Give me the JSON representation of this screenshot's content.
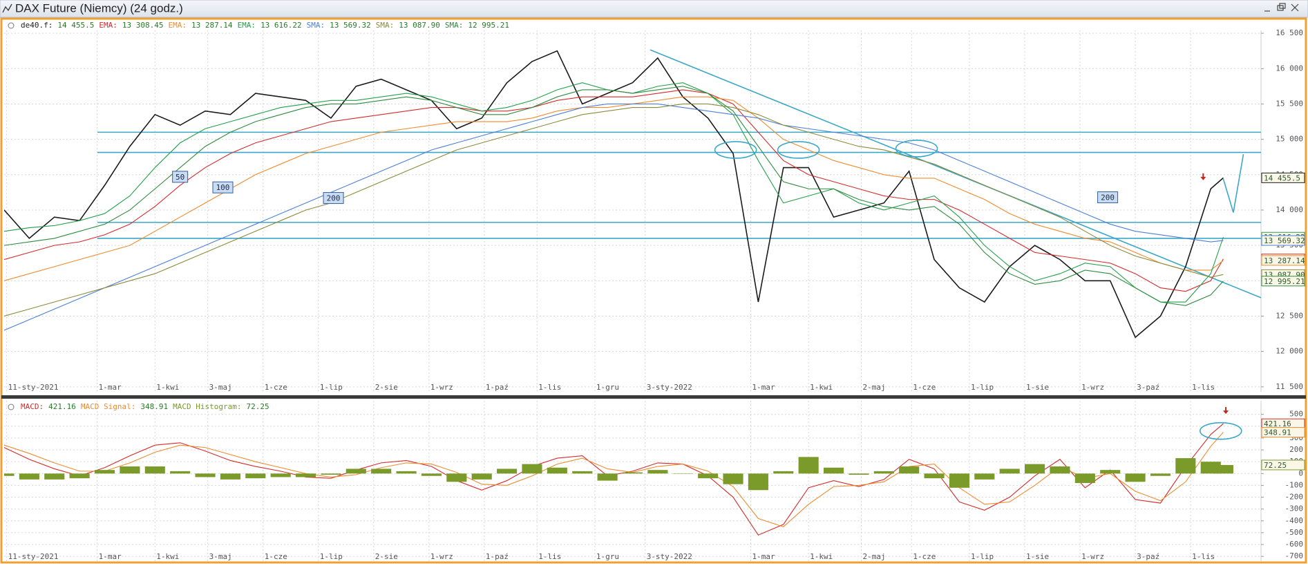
{
  "window_title": "DAX Future (Niemcy) (24 godz.)",
  "chart_data": [
    {
      "type": "line",
      "xlim": [
        0,
        500
      ],
      "ylim": [
        11430,
        16540
      ],
      "xticks": [
        {
          "value": 1,
          "label": "11-sty-2021"
        },
        {
          "value": 37,
          "label": "1-mar"
        },
        {
          "value": 60,
          "label": "1-kwi"
        },
        {
          "value": 81,
          "label": "3-maj"
        },
        {
          "value": 103,
          "label": "1-cze"
        },
        {
          "value": 125,
          "label": "1-lip"
        },
        {
          "value": 147,
          "label": "2-sie"
        },
        {
          "value": 169,
          "label": "1-wrz"
        },
        {
          "value": 191,
          "label": "1-paź"
        },
        {
          "value": 212,
          "label": "1-lis"
        },
        {
          "value": 235,
          "label": "1-gru"
        },
        {
          "value": 255,
          "label": "3-sty-2022"
        },
        {
          "value": 297,
          "label": "1-mar"
        },
        {
          "value": 320,
          "label": "1-kwi"
        },
        {
          "value": 341,
          "label": "2-maj"
        },
        {
          "value": 361,
          "label": "1-cze"
        },
        {
          "value": 384,
          "label": "1-lip"
        },
        {
          "value": 406,
          "label": "1-sie"
        },
        {
          "value": 428,
          "label": "1-wrz"
        },
        {
          "value": 450,
          "label": "3-paź"
        },
        {
          "value": 472,
          "label": "1-lis"
        }
      ],
      "yticks": [
        {
          "value": 11500,
          "label": "11 500"
        },
        {
          "value": 12000,
          "label": "12 000"
        },
        {
          "value": 12500,
          "label": "12 500"
        },
        {
          "value": 13000,
          "label": "13 000"
        },
        {
          "value": 13500,
          "label": "13 500"
        },
        {
          "value": 14000,
          "label": "14 000"
        },
        {
          "value": 14500,
          "label": "14 500"
        },
        {
          "value": 15000,
          "label": "15 000"
        },
        {
          "value": 15500,
          "label": "15 500"
        },
        {
          "value": 16000,
          "label": "16 000"
        },
        {
          "value": 16500,
          "label": "16 500"
        }
      ],
      "grid": true,
      "x": [
        0,
        10,
        20,
        30,
        40,
        50,
        60,
        70,
        80,
        90,
        100,
        110,
        120,
        130,
        140,
        150,
        160,
        170,
        180,
        190,
        200,
        210,
        220,
        230,
        240,
        250,
        260,
        270,
        280,
        290,
        300,
        310,
        320,
        330,
        340,
        350,
        360,
        370,
        380,
        390,
        400,
        410,
        420,
        430,
        440,
        450,
        460,
        470,
        480,
        485
      ],
      "legend": [
        {
          "name": "de40.f:",
          "value": "14 455.5"
        },
        {
          "name": "EMA:",
          "value": "13 308.45"
        },
        {
          "name": "EMA:",
          "value": "13 287.14"
        },
        {
          "name": "EMA:",
          "value": "13 616.22"
        },
        {
          "name": "SMA:",
          "value": "13 569.32"
        },
        {
          "name": "SMA:",
          "value": "13 087.90"
        },
        {
          "name": "SMA:",
          "value": "12 995.21"
        }
      ],
      "series": [
        {
          "type": "line",
          "color": "#1a1a1a",
          "values": [
            14000,
            13600,
            13900,
            13850,
            14350,
            14900,
            15350,
            15200,
            15400,
            15350,
            15650,
            15600,
            15550,
            15300,
            15750,
            15850,
            15700,
            15550,
            15150,
            15300,
            15800,
            16100,
            16250,
            15500,
            15650,
            15800,
            16150,
            15600,
            15300,
            14800,
            12700,
            14600,
            14600,
            13900,
            14000,
            14100,
            14550,
            13300,
            12900,
            12700,
            13200,
            13500,
            13300,
            13000,
            13000,
            12200,
            12500,
            13200,
            14300,
            14455.5
          ]
        },
        {
          "type": "line",
          "color": "#d42a2a",
          "values": [
            13300,
            13400,
            13500,
            13550,
            13650,
            13800,
            14050,
            14350,
            14600,
            14800,
            14950,
            15050,
            15150,
            15250,
            15300,
            15350,
            15400,
            15450,
            15450,
            15400,
            15400,
            15450,
            15550,
            15600,
            15600,
            15600,
            15650,
            15700,
            15650,
            15500,
            15100,
            14700,
            14500,
            14400,
            14300,
            14200,
            14150,
            14150,
            14000,
            13800,
            13600,
            13400,
            13350,
            13300,
            13250,
            13100,
            12900,
            12850,
            13000,
            13308.45
          ]
        },
        {
          "type": "line",
          "color": "#f08a2c",
          "values": [
            13000,
            13100,
            13200,
            13300,
            13400,
            13500,
            13700,
            13900,
            14100,
            14300,
            14500,
            14650,
            14800,
            14900,
            15000,
            15100,
            15150,
            15200,
            15250,
            15250,
            15250,
            15300,
            15400,
            15450,
            15450,
            15500,
            15550,
            15600,
            15600,
            15550,
            15300,
            15000,
            14850,
            14700,
            14600,
            14500,
            14450,
            14450,
            14300,
            14150,
            13950,
            13800,
            13700,
            13600,
            13550,
            13400,
            13250,
            13150,
            13150,
            13287.14
          ]
        },
        {
          "type": "line",
          "color": "#22a04a",
          "values": [
            13700,
            13750,
            13780,
            13850,
            13950,
            14200,
            14600,
            14950,
            15150,
            15250,
            15350,
            15450,
            15500,
            15550,
            15550,
            15600,
            15650,
            15600,
            15500,
            15400,
            15450,
            15550,
            15700,
            15800,
            15700,
            15650,
            15750,
            15800,
            15650,
            15350,
            14700,
            14100,
            14200,
            14300,
            14100,
            14000,
            14100,
            14200,
            13900,
            13500,
            13200,
            13000,
            13100,
            13250,
            13200,
            12900,
            12700,
            12700,
            13100,
            13616.22
          ]
        },
        {
          "type": "line",
          "color": "#4a7fd8",
          "values": [
            12300,
            12450,
            12600,
            12750,
            12900,
            13050,
            13200,
            13350,
            13500,
            13650,
            13800,
            13950,
            14100,
            14250,
            14400,
            14550,
            14700,
            14850,
            14950,
            15050,
            15150,
            15250,
            15350,
            15450,
            15500,
            15500,
            15500,
            15450,
            15400,
            15350,
            15300,
            15200,
            15150,
            15100,
            15050,
            15000,
            14950,
            14850,
            14700,
            14550,
            14400,
            14250,
            14100,
            13950,
            13800,
            13700,
            13650,
            13600,
            13550,
            13569.32
          ]
        },
        {
          "type": "line",
          "color": "#8a8a3a",
          "values": [
            12500,
            12600,
            12700,
            12800,
            12900,
            13000,
            13100,
            13250,
            13400,
            13550,
            13700,
            13850,
            14000,
            14100,
            14250,
            14400,
            14550,
            14700,
            14850,
            14950,
            15050,
            15150,
            15250,
            15350,
            15400,
            15450,
            15450,
            15500,
            15500,
            15450,
            15350,
            15200,
            15100,
            15000,
            14900,
            14850,
            14750,
            14650,
            14500,
            14350,
            14200,
            14050,
            13900,
            13700,
            13500,
            13350,
            13250,
            13150,
            13050,
            13087.9
          ]
        },
        {
          "type": "line",
          "color": "#2e8b3e",
          "values": [
            13500,
            13550,
            13600,
            13700,
            13800,
            14000,
            14300,
            14600,
            14900,
            15100,
            15250,
            15350,
            15450,
            15500,
            15500,
            15550,
            15600,
            15550,
            15450,
            15350,
            15350,
            15450,
            15600,
            15700,
            15700,
            15650,
            15700,
            15750,
            15650,
            15400,
            14900,
            14400,
            14300,
            14300,
            14150,
            14050,
            14000,
            14050,
            13800,
            13400,
            13100,
            12950,
            13000,
            13150,
            13100,
            12900,
            12700,
            12650,
            12800,
            12995.21
          ]
        }
      ],
      "line_color": "#3aa7c9",
      "hlines": [
        15100,
        14815,
        13825,
        13600
      ],
      "trendlines": [
        [
          [
            257,
            16265
          ],
          [
            500,
            12760
          ]
        ],
        [
          [
            485,
            14440
          ],
          [
            489,
            13965
          ],
          [
            493,
            14790
          ]
        ]
      ],
      "ellipses": [
        [
          291,
          14850
        ],
        [
          316,
          14850
        ],
        [
          363,
          14870
        ]
      ],
      "arrows": [
        [
          477,
          14440
        ]
      ],
      "annotations": [
        {
          "text": "50",
          "x": 70,
          "y": 14470
        },
        {
          "text": "100",
          "x": 87,
          "y": 14320
        },
        {
          "text": "200",
          "x": 131,
          "y": 14170
        },
        {
          "text": "200",
          "x": 439,
          "y": 14180
        }
      ]
    },
    {
      "type": "line",
      "xlim": [
        0,
        500
      ],
      "ylim": [
        -740,
        615
      ],
      "xticks": [
        {
          "value": 1,
          "label": "11-sty-2021"
        },
        {
          "value": 37,
          "label": "1-mar"
        },
        {
          "value": 60,
          "label": "1-kwi"
        },
        {
          "value": 81,
          "label": "3-maj"
        },
        {
          "value": 103,
          "label": "1-cze"
        },
        {
          "value": 125,
          "label": "1-lip"
        },
        {
          "value": 147,
          "label": "2-sie"
        },
        {
          "value": 169,
          "label": "1-wrz"
        },
        {
          "value": 191,
          "label": "1-paź"
        },
        {
          "value": 212,
          "label": "1-lis"
        },
        {
          "value": 235,
          "label": "1-gru"
        },
        {
          "value": 255,
          "label": "3-sty-2022"
        },
        {
          "value": 297,
          "label": "1-mar"
        },
        {
          "value": 320,
          "label": "1-kwi"
        },
        {
          "value": 341,
          "label": "2-maj"
        },
        {
          "value": 361,
          "label": "1-cze"
        },
        {
          "value": 384,
          "label": "1-lip"
        },
        {
          "value": 406,
          "label": "1-sie"
        },
        {
          "value": 428,
          "label": "1-wrz"
        },
        {
          "value": 450,
          "label": "3-paź"
        },
        {
          "value": 472,
          "label": "1-lis"
        }
      ],
      "yticks": [
        -700,
        -600,
        -500,
        -400,
        -300,
        -200,
        -100,
        0,
        100,
        200,
        300,
        400,
        500
      ],
      "grid": true,
      "x": [
        0,
        10,
        20,
        30,
        40,
        50,
        60,
        70,
        80,
        90,
        100,
        110,
        120,
        130,
        140,
        150,
        160,
        170,
        180,
        190,
        200,
        210,
        220,
        230,
        240,
        250,
        260,
        270,
        280,
        290,
        300,
        310,
        320,
        330,
        340,
        350,
        360,
        370,
        380,
        390,
        400,
        410,
        420,
        430,
        440,
        450,
        460,
        470,
        480,
        485
      ],
      "legend": [
        {
          "name": "MACD:",
          "value": "421.16"
        },
        {
          "name": "MACD Signal:",
          "value": "348.91"
        },
        {
          "name": "MACD Histogram:",
          "value": "72.25"
        }
      ],
      "series": [
        {
          "type": "line",
          "color": "#d42a2a",
          "values": [
            220,
            120,
            40,
            -20,
            50,
            150,
            240,
            260,
            190,
            110,
            60,
            20,
            -30,
            -40,
            30,
            90,
            110,
            60,
            -60,
            -140,
            -60,
            60,
            130,
            150,
            -20,
            20,
            90,
            80,
            -20,
            -200,
            -520,
            -430,
            -120,
            -60,
            -110,
            -50,
            120,
            40,
            -240,
            -310,
            -200,
            -20,
            120,
            -120,
            30,
            -220,
            -250,
            60,
            330,
            421.16
          ]
        },
        {
          "type": "line",
          "color": "#f08a2c",
          "values": [
            240,
            170,
            90,
            20,
            20,
            90,
            180,
            240,
            220,
            160,
            100,
            50,
            0,
            -30,
            -10,
            50,
            90,
            80,
            10,
            -90,
            -100,
            -20,
            80,
            130,
            40,
            10,
            60,
            80,
            20,
            -110,
            -380,
            -450,
            -260,
            -110,
            -100,
            -70,
            60,
            80,
            -120,
            -260,
            -240,
            -100,
            60,
            -40,
            0,
            -150,
            -230,
            -70,
            230,
            348.91
          ]
        },
        {
          "type": "bar",
          "color": "#7a9a2a",
          "values": [
            -20,
            -50,
            -50,
            -40,
            30,
            60,
            60,
            20,
            -30,
            -50,
            -40,
            -30,
            -30,
            -10,
            40,
            40,
            20,
            -20,
            -70,
            -50,
            40,
            80,
            50,
            20,
            -60,
            10,
            30,
            0,
            -40,
            -90,
            -140,
            20,
            140,
            50,
            -10,
            20,
            60,
            -40,
            -120,
            -50,
            40,
            80,
            60,
            -80,
            30,
            -70,
            -20,
            130,
            100,
            72.25
          ]
        }
      ],
      "line_color": "#3aa7c9",
      "ellipses": [
        [
          484,
          360
        ]
      ],
      "arrows": [
        [
          486,
          515
        ]
      ]
    }
  ]
}
